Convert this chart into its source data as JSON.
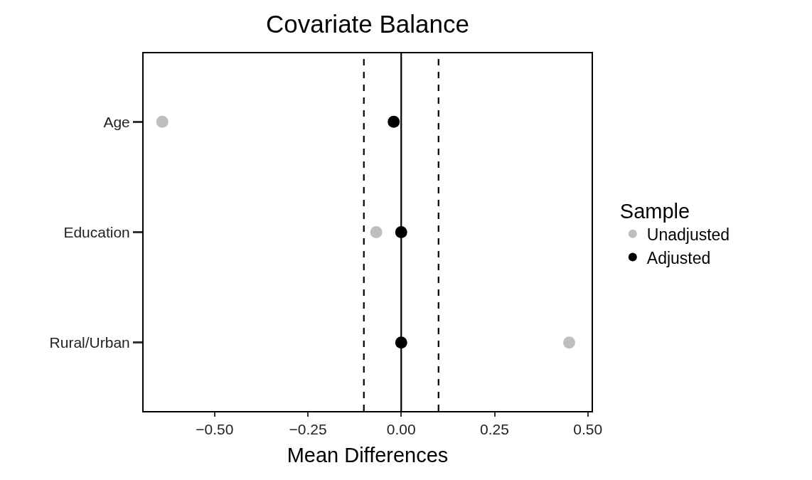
{
  "chart_data": {
    "type": "scatter",
    "title": "Covariate Balance",
    "xlabel": "Mean Differences",
    "legend_title": "Sample",
    "orientation": "horizontal",
    "categories": [
      "Age",
      "Education",
      "Rural/Urban"
    ],
    "series": [
      {
        "name": "Unadjusted",
        "color": "#bebebe",
        "values": [
          -0.64,
          -0.067,
          0.45
        ]
      },
      {
        "name": "Adjusted",
        "color": "#000000",
        "values": [
          -0.02,
          0.0,
          0.0
        ]
      }
    ],
    "xlim": [
      -0.69,
      0.51
    ],
    "xticks": [
      {
        "value": -0.5,
        "label": "−0.50"
      },
      {
        "value": -0.25,
        "label": "−0.25"
      },
      {
        "value": 0,
        "label": "0.00"
      },
      {
        "value": 0.25,
        "label": "0.25"
      },
      {
        "value": 0.5,
        "label": "0.50"
      }
    ],
    "ref_lines": [
      {
        "axis": "x",
        "value": 0,
        "color": "#000000",
        "line_style": "solid"
      },
      {
        "axis": "x",
        "value": -0.1,
        "color": "#000000",
        "line_style": "dashed"
      },
      {
        "axis": "x",
        "value": 0.1,
        "color": "#000000",
        "line_style": "dashed"
      }
    ],
    "grid": false,
    "legend": "right",
    "marker": "circle"
  }
}
